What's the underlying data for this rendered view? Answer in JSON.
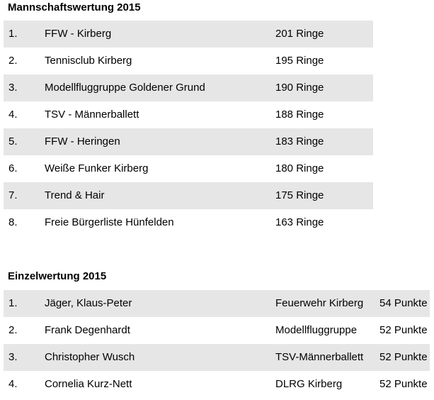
{
  "team_ranking": {
    "title": "Mannschaftswertung 2015",
    "rows": [
      {
        "rank": "1.",
        "name": "FFW - Kirberg",
        "score": "201 Ringe"
      },
      {
        "rank": "2.",
        "name": "Tennisclub Kirberg",
        "score": "195 Ringe"
      },
      {
        "rank": "3.",
        "name": "Modellfluggruppe Goldener Grund",
        "score": "190 Ringe"
      },
      {
        "rank": "4.",
        "name": "TSV - Männerballett",
        "score": "188 Ringe"
      },
      {
        "rank": "5.",
        "name": "FFW - Heringen",
        "score": "183 Ringe"
      },
      {
        "rank": "6.",
        "name": "Weiße Funker Kirberg",
        "score": "180 Ringe"
      },
      {
        "rank": "7.",
        "name": "Trend & Hair",
        "score": "175 Ringe"
      },
      {
        "rank": "8.",
        "name": "Freie Bürgerliste Hünfelden",
        "score": "163 Ringe"
      }
    ]
  },
  "single_ranking": {
    "title": "Einzelwertung 2015",
    "rows": [
      {
        "rank": "1.",
        "name": "Jäger, Klaus-Peter",
        "club": "Feuerwehr Kirberg",
        "score": "54 Punkte"
      },
      {
        "rank": "2.",
        "name": "Frank Degenhardt",
        "club": "Modellfluggruppe",
        "score": "52 Punkte"
      },
      {
        "rank": "3.",
        "name": "Christopher Wusch",
        "club": "TSV-Männerballett",
        "score": "52 Punkte"
      },
      {
        "rank": "4.",
        "name": "Cornelia Kurz-Nett",
        "club": "DLRG Kirberg",
        "score": "52 Punkte"
      }
    ]
  },
  "colors": {
    "row_shade": "#e6e6e6",
    "text": "#000000"
  }
}
